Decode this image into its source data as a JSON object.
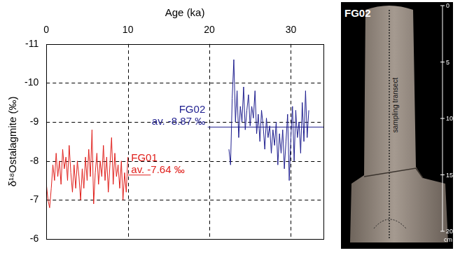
{
  "chart_data": {
    "type": "line",
    "xlabel": "Age (ka)",
    "ylabel": "δ¹⁸Ostalagmite (‰)",
    "xlim": [
      0,
      34
    ],
    "xticks": [
      0,
      10,
      20,
      30
    ],
    "ylim": [
      -11,
      -6
    ],
    "yticks": [
      -11,
      -10,
      -9,
      -8,
      -7,
      -6
    ],
    "grid": true,
    "series": [
      {
        "name": "FG01",
        "color": "#e0201c",
        "x": [
          0,
          0.2,
          0.4,
          0.6,
          0.8,
          1.0,
          1.2,
          1.4,
          1.6,
          1.8,
          2.0,
          2.2,
          2.4,
          2.6,
          2.8,
          3.0,
          3.2,
          3.4,
          3.6,
          3.8,
          4.0,
          4.2,
          4.4,
          4.6,
          4.8,
          5.0,
          5.2,
          5.4,
          5.6,
          5.8,
          6.0,
          6.2,
          6.4,
          6.6,
          6.8,
          7.0,
          7.2,
          7.4,
          7.6,
          7.8,
          8.0,
          8.2,
          8.4,
          8.6,
          8.8,
          9.0,
          9.2,
          9.4,
          9.6,
          9.8,
          10.0
        ],
        "values": [
          -7.4,
          -7.0,
          -6.8,
          -7.3,
          -7.9,
          -7.5,
          -8.2,
          -7.6,
          -8.0,
          -7.4,
          -8.3,
          -7.8,
          -8.1,
          -7.5,
          -8.4,
          -7.7,
          -7.2,
          -7.9,
          -7.3,
          -8.0,
          -7.6,
          -7.0,
          -7.8,
          -7.3,
          -8.1,
          -7.5,
          -8.3,
          -7.6,
          -8.8,
          -6.9,
          -7.7,
          -8.2,
          -7.4,
          -8.0,
          -7.6,
          -8.4,
          -7.5,
          -8.1,
          -7.2,
          -7.9,
          -8.6,
          -7.4,
          -8.2,
          -7.6,
          -7.9,
          -7.3,
          -8.0,
          -7.0,
          -7.7,
          -7.2,
          -8.1
        ]
      },
      {
        "name": "FG02",
        "color": "#1f1f8f",
        "x": [
          22.4,
          22.6,
          22.8,
          23.0,
          23.2,
          23.4,
          23.6,
          23.8,
          24.0,
          24.2,
          24.4,
          24.6,
          24.8,
          25.0,
          25.2,
          25.4,
          25.6,
          25.8,
          26.0,
          26.2,
          26.4,
          26.6,
          26.8,
          27.0,
          27.2,
          27.4,
          27.6,
          27.8,
          28.0,
          28.2,
          28.4,
          28.6,
          28.8,
          29.0,
          29.2,
          29.4,
          29.6,
          29.8,
          30.0,
          30.2,
          30.4,
          30.6,
          30.8,
          31.0,
          31.2,
          31.4,
          31.6,
          31.8,
          32.0,
          32.2
        ],
        "values": [
          -8.3,
          -7.9,
          -9.6,
          -10.6,
          -9.0,
          -9.8,
          -8.6,
          -9.4,
          -9.0,
          -9.9,
          -8.8,
          -9.3,
          -9.7,
          -8.9,
          -9.4,
          -9.1,
          -9.8,
          -8.7,
          -9.2,
          -8.5,
          -9.3,
          -8.9,
          -8.3,
          -9.1,
          -8.6,
          -8.9,
          -8.2,
          -8.8,
          -8.4,
          -9.0,
          -7.9,
          -8.7,
          -8.2,
          -8.8,
          -7.8,
          -8.5,
          -9.2,
          -7.5,
          -8.6,
          -9.4,
          -8.0,
          -9.3,
          -8.6,
          -9.0,
          -8.2,
          -9.5,
          -8.5,
          -9.8,
          -8.6,
          -9.3
        ]
      }
    ],
    "annotations": [
      {
        "lines": [
          "FG02",
          "av. -8.87 ‰"
        ],
        "color": "#1f1f8f",
        "x": 19.5,
        "align": "right",
        "value": -8.87,
        "line_x": [
          19.8,
          34
        ]
      },
      {
        "lines": [
          "FG01",
          "av. -7.64 ‰"
        ],
        "color": "#e0201c",
        "x": 10.4,
        "align": "left",
        "value": -7.64,
        "line_x": [
          10,
          12.8
        ]
      }
    ]
  },
  "photo": {
    "title": "FG02",
    "transect_label": "sampling transect",
    "scale_ticks": [
      0,
      5,
      10,
      15,
      20
    ],
    "scale_unit": "cm"
  }
}
